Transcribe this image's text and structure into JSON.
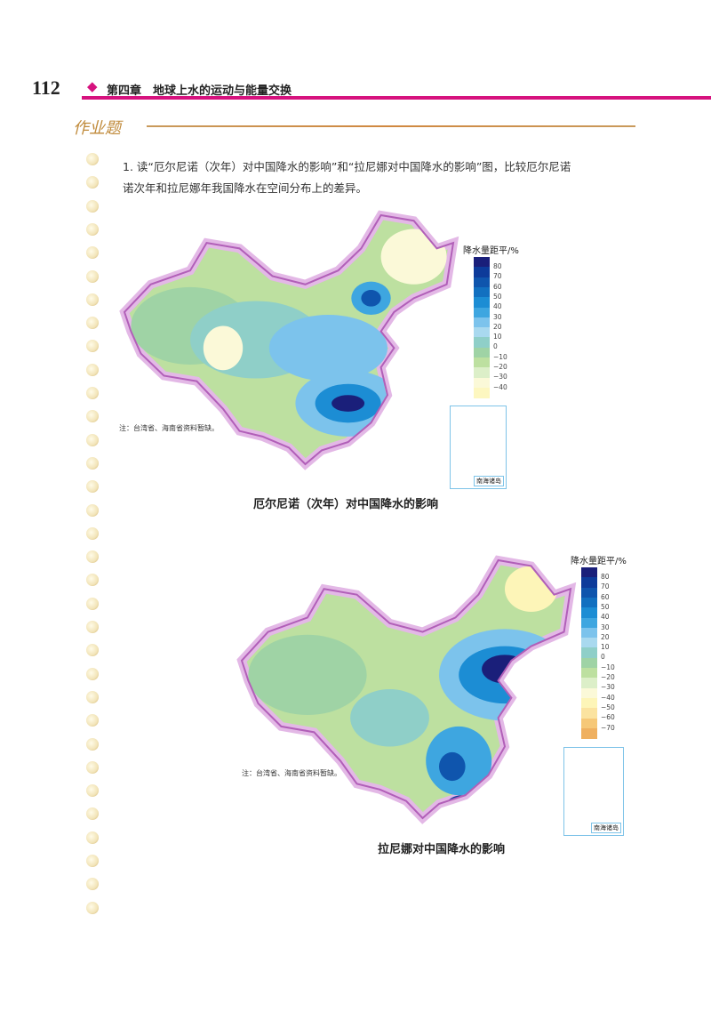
{
  "header": {
    "page_number": "112",
    "chapter": "第四章　地球上水的运动与能量交换"
  },
  "section_title": "作业题",
  "question": {
    "line1": "1. 读“厄尔尼诺（次年）对中国降水的影响”和“拉尼娜对中国降水的影响”图，比较厄尔尼诺",
    "line2": "诺次年和拉尼娜年我国降水在空间分布上的差异。"
  },
  "maps": [
    {
      "caption": "厄尔尼诺（次年）对中国降水的影响",
      "legend_title": "降水量距平/%",
      "legend_labels": [
        "80",
        "70",
        "60",
        "50",
        "40",
        "30",
        "20",
        "10",
        "0",
        "−10",
        "−20",
        "−30",
        "−40"
      ],
      "legend_colors": [
        "#1a1f7a",
        "#0d3b9a",
        "#0f55ad",
        "#1270c0",
        "#1c8dd4",
        "#3ea6e0",
        "#7cc3ec",
        "#a9d9ef",
        "#8fcfc8",
        "#9fd3a5",
        "#bde0a0",
        "#dcefc8",
        "#fbf9d8",
        "#fdf7c0"
      ],
      "note": "注：台湾省、海南省资料暂缺。",
      "inset_label": "南海诸岛"
    },
    {
      "caption": "拉尼娜对中国降水的影响",
      "legend_title": "降水量距平/%",
      "legend_labels": [
        "80",
        "70",
        "60",
        "50",
        "40",
        "30",
        "20",
        "10",
        "0",
        "−10",
        "−20",
        "−30",
        "−40",
        "−50",
        "−60",
        "−70"
      ],
      "legend_colors": [
        "#1a1f7a",
        "#0d3b9a",
        "#0f55ad",
        "#1270c0",
        "#1c8dd4",
        "#3ea6e0",
        "#7cc3ec",
        "#a9d9ef",
        "#8fcfc8",
        "#9fd3a5",
        "#bde0a0",
        "#dcefc8",
        "#fbf9d8",
        "#fdf5b8",
        "#fbe3a0",
        "#f6c878",
        "#efb060"
      ],
      "note": "注：台湾省、海南省资料暂缺。",
      "inset_label": "南海诸岛"
    }
  ],
  "colors": {
    "accent": "#d6127e",
    "section": "#c08a3a",
    "border": "#c77ac0"
  }
}
